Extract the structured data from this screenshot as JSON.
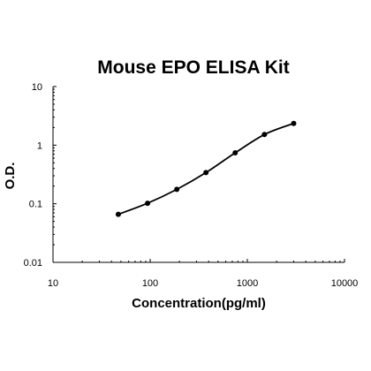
{
  "chart_data": {
    "type": "scatter",
    "title": "Mouse EPO ELISA Kit",
    "xlabel": "Concentration(pg/ml)",
    "ylabel": "O.D.",
    "x_scale": "log",
    "y_scale": "log",
    "xlim": [
      10,
      10000
    ],
    "ylim": [
      0.01,
      10
    ],
    "x_ticks": [
      10,
      100,
      1000,
      10000
    ],
    "x_tick_labels": [
      "10",
      "100",
      "1000",
      "10000"
    ],
    "y_ticks": [
      0.01,
      0.1,
      1,
      10
    ],
    "y_tick_labels": [
      "0.01",
      "0.1",
      "1",
      "10"
    ],
    "grid": false,
    "legend": "none",
    "series": [
      {
        "x": [
          47,
          94,
          188,
          375,
          750,
          1500,
          3000
        ],
        "y": [
          0.066,
          0.102,
          0.176,
          0.34,
          0.74,
          1.52,
          2.35
        ],
        "markers": true,
        "fit_curve": true,
        "color": "#000000"
      }
    ]
  }
}
